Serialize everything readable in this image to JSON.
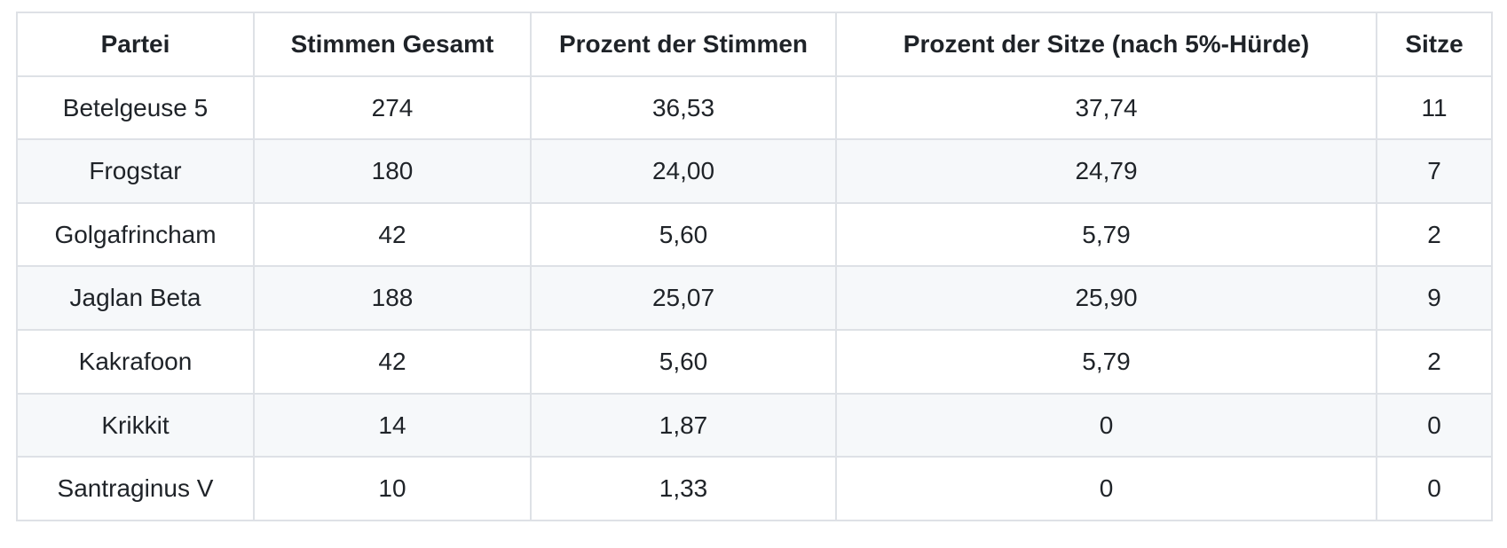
{
  "chart_data": {
    "type": "table",
    "title": "",
    "columns": [
      "Partei",
      "Stimmen Gesamt",
      "Prozent der Stimmen",
      "Prozent der Sitze (nach 5%-Hürde)",
      "Sitze"
    ],
    "rows": [
      [
        "Betelgeuse 5",
        "274",
        "36,53",
        "37,74",
        "11"
      ],
      [
        "Frogstar",
        "180",
        "24,00",
        "24,79",
        "7"
      ],
      [
        "Golgafrincham",
        "42",
        "5,60",
        "5,79",
        "2"
      ],
      [
        "Jaglan Beta",
        "188",
        "25,07",
        "25,90",
        "9"
      ],
      [
        "Kakrafoon",
        "42",
        "5,60",
        "5,79",
        "2"
      ],
      [
        "Krikkit",
        "14",
        "1,87",
        "0",
        "0"
      ],
      [
        "Santraginus V",
        "10",
        "1,33",
        "0",
        "0"
      ]
    ],
    "layout": {
      "header_row": true,
      "zebra_striping": true,
      "text_align": "center"
    }
  },
  "colors": {
    "background": "#ffffff",
    "stripe": "#f6f8fa",
    "border": "#dee1e6",
    "text": "#1f2328"
  }
}
